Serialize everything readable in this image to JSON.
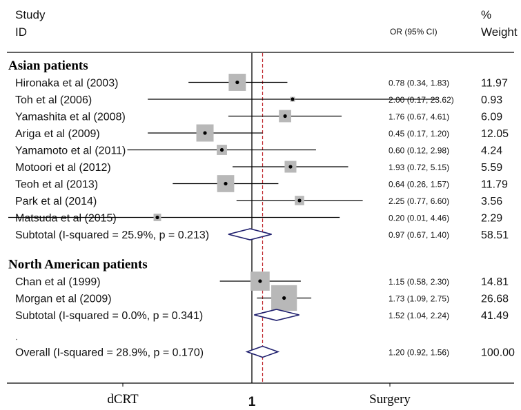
{
  "chart_data": {
    "type": "forest",
    "header": {
      "study_line1": "Study",
      "study_line2": "ID",
      "or_label": "OR (95% CI)",
      "weight_line1": "%",
      "weight_line2": "Weight"
    },
    "scale": "log",
    "xlim": [
      0.01,
      100
    ],
    "null_line": 1,
    "overall_line": 1.2,
    "axis": {
      "left_label": "dCRT",
      "center_label": "1",
      "right_label": "Surgery"
    },
    "groups": [
      {
        "heading": "Asian patients",
        "studies": [
          {
            "label": "Hironaka et al (2003)",
            "or": 0.78,
            "lo": 0.34,
            "hi": 1.83,
            "ci_text": "0.78 (0.34, 1.83)",
            "weight": 11.97,
            "weight_text": "11.97"
          },
          {
            "label": "Toh et al (2006)",
            "or": 2.0,
            "lo": 0.17,
            "hi": 23.62,
            "ci_text": "2.00 (0.17, 23.62)",
            "weight": 0.93,
            "weight_text": "0.93"
          },
          {
            "label": "Yamashita et al (2008)",
            "or": 1.76,
            "lo": 0.67,
            "hi": 4.61,
            "ci_text": "1.76 (0.67, 4.61)",
            "weight": 6.09,
            "weight_text": "6.09"
          },
          {
            "label": "Ariga et al (2009)",
            "or": 0.45,
            "lo": 0.17,
            "hi": 1.2,
            "ci_text": "0.45 (0.17, 1.20)",
            "weight": 12.05,
            "weight_text": "12.05"
          },
          {
            "label": "Yamamoto et al (2011)",
            "or": 0.6,
            "lo": 0.12,
            "hi": 2.98,
            "ci_text": "0.60 (0.12, 2.98)",
            "weight": 4.24,
            "weight_text": "4.24"
          },
          {
            "label": "Motoori et al (2012)",
            "or": 1.93,
            "lo": 0.72,
            "hi": 5.15,
            "ci_text": "1.93 (0.72, 5.15)",
            "weight": 5.59,
            "weight_text": "5.59"
          },
          {
            "label": "Teoh et al (2013)",
            "or": 0.64,
            "lo": 0.26,
            "hi": 1.57,
            "ci_text": "0.64 (0.26, 1.57)",
            "weight": 11.79,
            "weight_text": "11.79"
          },
          {
            "label": "Park et al (2014)",
            "or": 2.25,
            "lo": 0.77,
            "hi": 6.6,
            "ci_text": "2.25 (0.77, 6.60)",
            "weight": 3.56,
            "weight_text": "3.56"
          },
          {
            "label": "Matsuda et al (2015)",
            "or": 0.2,
            "lo": 0.01,
            "hi": 4.46,
            "ci_text": "0.20 (0.01, 4.46)",
            "weight": 2.29,
            "weight_text": "2.29"
          }
        ],
        "subtotal": {
          "label": "Subtotal  (I-squared = 25.9%, p = 0.213)",
          "or": 0.97,
          "lo": 0.67,
          "hi": 1.4,
          "ci_text": "0.97 (0.67, 1.40)",
          "weight": 58.51,
          "weight_text": "58.51"
        }
      },
      {
        "heading": "North American patients",
        "studies": [
          {
            "label": "Chan et al (1999)",
            "or": 1.15,
            "lo": 0.58,
            "hi": 2.3,
            "ci_text": "1.15 (0.58, 2.30)",
            "weight": 14.81,
            "weight_text": "14.81"
          },
          {
            "label": "Morgan et al (2009)",
            "or": 1.73,
            "lo": 1.09,
            "hi": 2.75,
            "ci_text": "1.73 (1.09, 2.75)",
            "weight": 26.68,
            "weight_text": "26.68"
          }
        ],
        "subtotal": {
          "label": "Subtotal  (I-squared = 0.0%, p = 0.341)",
          "or": 1.52,
          "lo": 1.04,
          "hi": 2.24,
          "ci_text": "1.52 (1.04, 2.24)",
          "weight": 41.49,
          "weight_text": "41.49"
        }
      }
    ],
    "overall": {
      "label": "Overall  (I-squared = 28.9%, p = 0.170)",
      "or": 1.2,
      "lo": 0.92,
      "hi": 1.56,
      "ci_text": "1.20 (0.92, 1.56)",
      "weight": 100.0,
      "weight_text": "100.00"
    },
    "colors": {
      "box": "#b8b8b8",
      "diamond": "#1f1f6e",
      "null_line": "#000000",
      "overall_line": "#c0282d"
    }
  }
}
